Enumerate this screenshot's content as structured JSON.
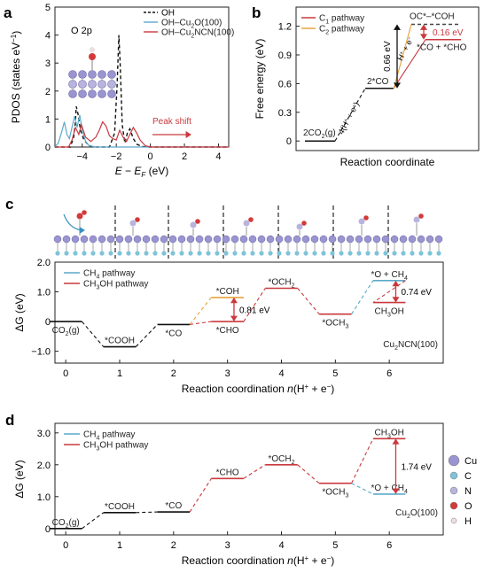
{
  "panels": {
    "a": {
      "letter": "a"
    },
    "b": {
      "letter": "b"
    },
    "c": {
      "letter": "c"
    },
    "d": {
      "letter": "d"
    }
  },
  "chart_data": [
    {
      "id": "a",
      "type": "line",
      "title": "",
      "annotation": "O 2p",
      "peak_shift_label": "Peak shift",
      "xlabel_main": "E − E",
      "xlabel_sub": "F",
      "xlabel_unit": " (eV)",
      "ylabel": "PDOS (states eV",
      "ylabel_sup": "−1",
      "ylabel_end": ")",
      "xlim": [
        -5.6,
        4.6
      ],
      "ylim": [
        0,
        5
      ],
      "xticks": [
        -4,
        -2,
        0,
        2,
        4
      ],
      "xtick_labels": [
        "−4",
        "−2",
        "0",
        "2",
        "4"
      ],
      "yticks": [
        0,
        1,
        2,
        3,
        4,
        5
      ],
      "legend_position": "top-right",
      "series": [
        {
          "name": "OH",
          "color": "#111111",
          "dash": "4,3",
          "x": [
            -5.6,
            -4.7,
            -4.5,
            -4.4,
            -4.35,
            -4.25,
            -4.1,
            -3.9,
            -3.6,
            -3.3,
            -2.4,
            -2.1,
            -1.95,
            -1.85,
            -1.78,
            -1.65,
            -1.5,
            -1.35,
            -1.2,
            -1.0,
            -0.8,
            -0.5,
            0,
            4.6
          ],
          "y": [
            0,
            0,
            0.35,
            0.9,
            1.45,
            1.2,
            0.6,
            0.25,
            0.05,
            0,
            0,
            0.5,
            2.2,
            4.0,
            3.1,
            0.8,
            0.15,
            0.5,
            0.65,
            0.3,
            0.1,
            0.02,
            0,
            0
          ]
        },
        {
          "name": "OH–Cu2O(100)",
          "name_parts": [
            "OH–Cu",
            "2",
            "O(100)"
          ],
          "color": "#5aa9c8",
          "dash": "",
          "x": [
            -5.6,
            -5.4,
            -5.2,
            -5.05,
            -4.9,
            -4.75,
            -4.6,
            -4.45,
            -4.3,
            -4.15,
            -4.0,
            -3.8,
            -3.6,
            -3.2,
            0,
            4.6
          ],
          "y": [
            0,
            0.15,
            0.55,
            0.9,
            0.45,
            0.3,
            0.7,
            1.1,
            0.7,
            1.15,
            0.6,
            0.2,
            0.05,
            0,
            0,
            0
          ]
        },
        {
          "name": "OH–Cu2NCN(100)",
          "name_parts": [
            "OH–Cu",
            "2",
            "NCN(100)"
          ],
          "color": "#c9393d",
          "dash": "",
          "x": [
            -5.6,
            -4.8,
            -4.6,
            -4.4,
            -4.2,
            -4.05,
            -3.8,
            -3.5,
            -3.2,
            -3.0,
            -2.8,
            -2.6,
            -2.4,
            -2.2,
            -2.0,
            -1.8,
            -1.6,
            -1.4,
            -1.2,
            -1.0,
            -0.8,
            -0.6,
            -0.3,
            0,
            4.6
          ],
          "y": [
            0,
            0,
            0.25,
            0.7,
            0.45,
            0.8,
            0.35,
            0.2,
            0.35,
            0.6,
            0.9,
            0.75,
            0.4,
            0.3,
            0.25,
            0.6,
            0.35,
            0.2,
            0.45,
            0.7,
            0.5,
            0.25,
            0.05,
            0,
            0
          ]
        }
      ]
    },
    {
      "id": "b",
      "type": "line",
      "title": "",
      "xlabel": "Reaction coordinate",
      "ylabel": "Free energy (eV)",
      "ylim": [
        -0.1,
        1.4
      ],
      "yticks": [
        0,
        0.3,
        0.6,
        0.9,
        1.2
      ],
      "ytick_labels": [
        "0",
        "0.3",
        "0.6",
        "0.9",
        "1.2"
      ],
      "legend_position": "top-left",
      "series": [
        {
          "name": "C1 pathway",
          "name_parts": [
            "C",
            "1",
            " pathway"
          ],
          "color": "#c9393d"
        },
        {
          "name": "C2 pathway",
          "name_parts": [
            "C",
            "2",
            " pathway"
          ],
          "color": "#e8a33d"
        }
      ],
      "levels": [
        {
          "label": "2CO2(g)",
          "label_parts": [
            "2CO",
            "2",
            "(g)"
          ],
          "y": 0.0
        },
        {
          "label": "2*CO",
          "label_parts": [
            "2*CO",
            "",
            ""
          ],
          "y": 0.55
        },
        {
          "label": "*CO + *CHO",
          "label_parts": [
            "*CO + *CHO",
            "",
            ""
          ],
          "y": 1.06
        },
        {
          "label": "OC*–*COH",
          "label_parts": [
            "OC*–*COH",
            "",
            ""
          ],
          "y": 1.22
        }
      ],
      "step_label_1": "4(H",
      "step_label_1b": "+",
      "step_label_1c": " + e",
      "step_label_1d": "−",
      "step_label_1e": ")",
      "step_label_2": "H",
      "step_label_2b": "+",
      "step_label_2c": " + e",
      "step_label_2d": "−",
      "gap_1": "0.66 eV",
      "gap_2": "0.16 eV"
    },
    {
      "id": "c",
      "type": "line",
      "title": "",
      "xlabel": "Reaction coordination n(H+ + e−)",
      "xlabel_parts": [
        "Reaction coordination ",
        "n",
        "(H",
        "+",
        " + e",
        "−",
        ")"
      ],
      "ylabel": "ΔG (eV)",
      "xlim": [
        -0.2,
        7.0
      ],
      "ylim": [
        -1.4,
        2.0
      ],
      "xticks": [
        0,
        1,
        2,
        3,
        4,
        5,
        6
      ],
      "yticks": [
        -1.0,
        0,
        1.0,
        2.0
      ],
      "ytick_labels": [
        "−1.0",
        "0",
        "1.0",
        "2.0"
      ],
      "catalyst": "Cu2NCN(100)",
      "catalyst_parts": [
        "Cu",
        "2",
        "NCN(100)"
      ],
      "legend_position": "top-left",
      "series": [
        {
          "name": "CH4 pathway",
          "name_parts": [
            "CH",
            "4",
            " pathway"
          ],
          "color": "#5aa9c8"
        },
        {
          "name": "CH3OH pathway",
          "name_parts": [
            "CH",
            "3",
            "OH pathway"
          ],
          "color": "#c9393d"
        }
      ],
      "levels": [
        {
          "n": 0,
          "y": 0.0,
          "label_parts": [
            "CO",
            "2",
            "(g)"
          ],
          "color": "#111111",
          "label_pos": "below"
        },
        {
          "n": 1,
          "y": -0.85,
          "label_parts": [
            "*COOH",
            "",
            ""
          ],
          "color": "#111111",
          "label_pos": "above"
        },
        {
          "n": 2,
          "y": -0.1,
          "label_parts": [
            "*CO",
            "",
            ""
          ],
          "color": "#111111",
          "label_pos": "below"
        },
        {
          "n": 3,
          "y": 0.81,
          "label_parts": [
            "*COH",
            "",
            ""
          ],
          "color": "#e8a33d",
          "label_pos": "above"
        },
        {
          "n": 3,
          "y": 0.0,
          "label_parts": [
            "*CHO",
            "",
            ""
          ],
          "color": "#c9393d",
          "label_pos": "below"
        },
        {
          "n": 4,
          "y": 1.12,
          "label_parts": [
            "*OCH",
            "2",
            ""
          ],
          "color": "#c9393d",
          "label_pos": "above"
        },
        {
          "n": 5,
          "y": 0.25,
          "label_parts": [
            "*OCH",
            "3",
            ""
          ],
          "color": "#c9393d",
          "label_pos": "below"
        },
        {
          "n": 6,
          "y": 1.38,
          "label_parts": [
            "*O + CH",
            "4",
            ""
          ],
          "color": "#5aa9c8",
          "label_pos": "above"
        },
        {
          "n": 6,
          "y": 0.64,
          "label_parts": [
            "CH",
            "3",
            "OH"
          ],
          "color": "#c9393d",
          "label_pos": "below"
        }
      ],
      "gap_1": "0.81 eV",
      "gap_2": "0.74 eV"
    },
    {
      "id": "d",
      "type": "line",
      "title": "",
      "xlabel": "Reaction coordination n(H+ + e−)",
      "xlabel_parts": [
        "Reaction coordination ",
        "n",
        "(H",
        "+",
        " + e",
        "−",
        ")"
      ],
      "ylabel": "ΔG (eV)",
      "xlim": [
        -0.2,
        7.0
      ],
      "ylim": [
        -0.2,
        3.3
      ],
      "xticks": [
        0,
        1,
        2,
        3,
        4,
        5,
        6
      ],
      "yticks": [
        0,
        1.0,
        2.0,
        3.0
      ],
      "ytick_labels": [
        "0",
        "1.0",
        "2.0",
        "3.0"
      ],
      "catalyst": "Cu2O(100)",
      "catalyst_parts": [
        "Cu",
        "2",
        "O(100)"
      ],
      "legend_position": "top-left",
      "series": [
        {
          "name": "CH4 pathway",
          "name_parts": [
            "CH",
            "4",
            " pathway"
          ],
          "color": "#5aa9c8"
        },
        {
          "name": "CH3OH pathway",
          "name_parts": [
            "CH",
            "3",
            "OH pathway"
          ],
          "color": "#c9393d"
        }
      ],
      "levels": [
        {
          "n": 0,
          "y": 0.0,
          "label_parts": [
            "CO",
            "2",
            "(g)"
          ],
          "color": "#111111",
          "label_pos": "above"
        },
        {
          "n": 1,
          "y": 0.5,
          "label_parts": [
            "*COOH",
            "",
            ""
          ],
          "color": "#111111",
          "label_pos": "above"
        },
        {
          "n": 2,
          "y": 0.52,
          "label_parts": [
            "*CO",
            "",
            ""
          ],
          "color": "#111111",
          "label_pos": "above"
        },
        {
          "n": 3,
          "y": 1.57,
          "label_parts": [
            "*CHO",
            "",
            ""
          ],
          "color": "#c9393d",
          "label_pos": "above"
        },
        {
          "n": 4,
          "y": 2.0,
          "label_parts": [
            "*OCH",
            "2",
            ""
          ],
          "color": "#c9393d",
          "label_pos": "above"
        },
        {
          "n": 5,
          "y": 1.42,
          "label_parts": [
            "*OCH",
            "3",
            ""
          ],
          "color": "#c9393d",
          "label_pos": "below"
        },
        {
          "n": 6,
          "y": 2.82,
          "label_parts": [
            "CH",
            "3",
            "OH"
          ],
          "color": "#c9393d",
          "label_pos": "above"
        },
        {
          "n": 6,
          "y": 1.08,
          "label_parts": [
            "*O + CH",
            "4",
            ""
          ],
          "color": "#5aa9c8",
          "label_pos": "above"
        }
      ],
      "gap_1": "1.74 eV"
    }
  ],
  "atom_legend": [
    {
      "label": "Cu",
      "color": "#9a94d0"
    },
    {
      "label": "C",
      "color": "#7ec3da"
    },
    {
      "label": "N",
      "color": "#b7b4dd"
    },
    {
      "label": "O",
      "color": "#d33a3a"
    },
    {
      "label": "H",
      "color": "#f2dede"
    }
  ]
}
